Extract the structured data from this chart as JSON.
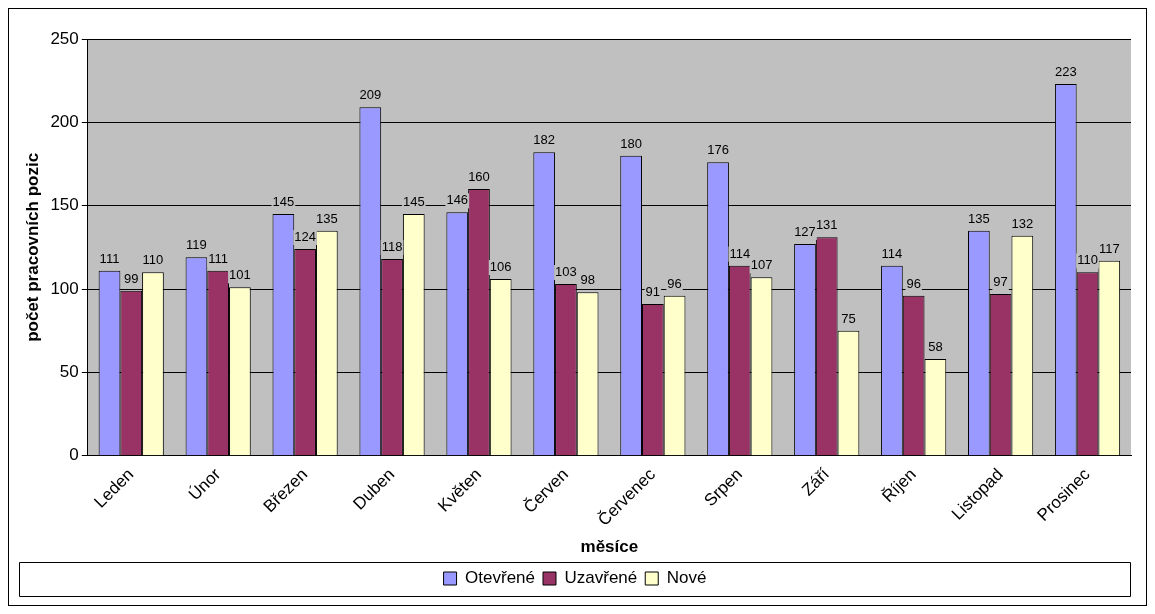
{
  "chart_data": {
    "type": "bar",
    "xlabel": "měsíce",
    "ylabel": "počet pracovních pozic",
    "categories": [
      "Leden",
      "Únor",
      "Březen",
      "Duben",
      "Květen",
      "Červen",
      "Červenec",
      "Srpen",
      "Září",
      "Říjen",
      "Listopad",
      "Prosinec"
    ],
    "series": [
      {
        "name": "Otevřené",
        "color": "#9999ff",
        "values": [
          111,
          119,
          145,
          209,
          146,
          182,
          180,
          176,
          127,
          114,
          135,
          223
        ]
      },
      {
        "name": "Uzavřené",
        "color": "#993366",
        "values": [
          99,
          111,
          124,
          118,
          160,
          103,
          91,
          114,
          131,
          96,
          97,
          110
        ]
      },
      {
        "name": "Nové",
        "color": "#ffffcc",
        "values": [
          110,
          101,
          135,
          145,
          106,
          98,
          96,
          107,
          75,
          58,
          132,
          117
        ]
      }
    ],
    "ylim": [
      0,
      250
    ],
    "yticks": [
      0,
      50,
      100,
      150,
      200,
      250
    ],
    "grid": "y",
    "legend": "bottom",
    "data_labels": true
  }
}
